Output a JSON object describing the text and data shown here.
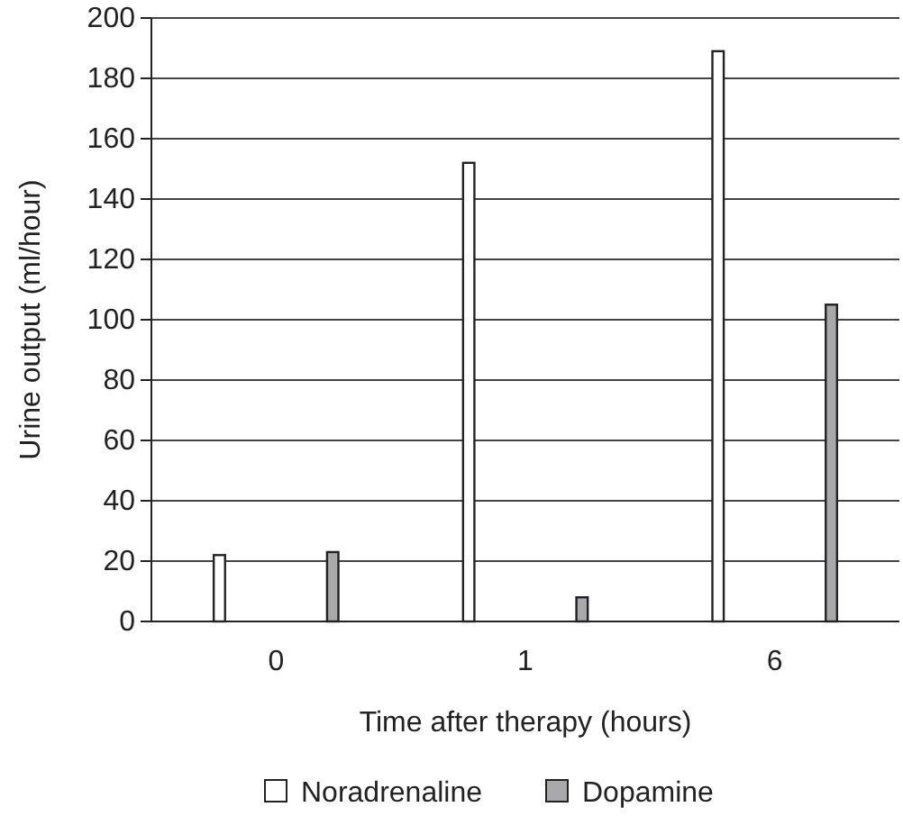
{
  "chart_data": {
    "type": "bar",
    "xlabel": "Time after therapy (hours)",
    "ylabel": "Urine output (ml/hour)",
    "categories": [
      "0",
      "1",
      "6"
    ],
    "series": [
      {
        "name": "Noradrenaline",
        "color": "#ffffff",
        "values": [
          22,
          152,
          189
        ]
      },
      {
        "name": "Dopamine",
        "color": "#a9a9ab",
        "values": [
          23,
          8,
          105
        ]
      }
    ],
    "ylim": [
      0,
      200
    ],
    "yticks": [
      0,
      20,
      40,
      60,
      80,
      100,
      120,
      140,
      160,
      180,
      200
    ],
    "grid": "y",
    "legend": "bottom"
  }
}
